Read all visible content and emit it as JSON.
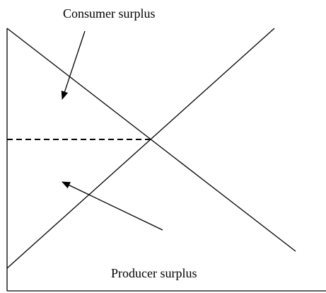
{
  "labels": {
    "consumer_surplus": "Consumer surplus",
    "producer_surplus": "Producer surplus"
  }
}
